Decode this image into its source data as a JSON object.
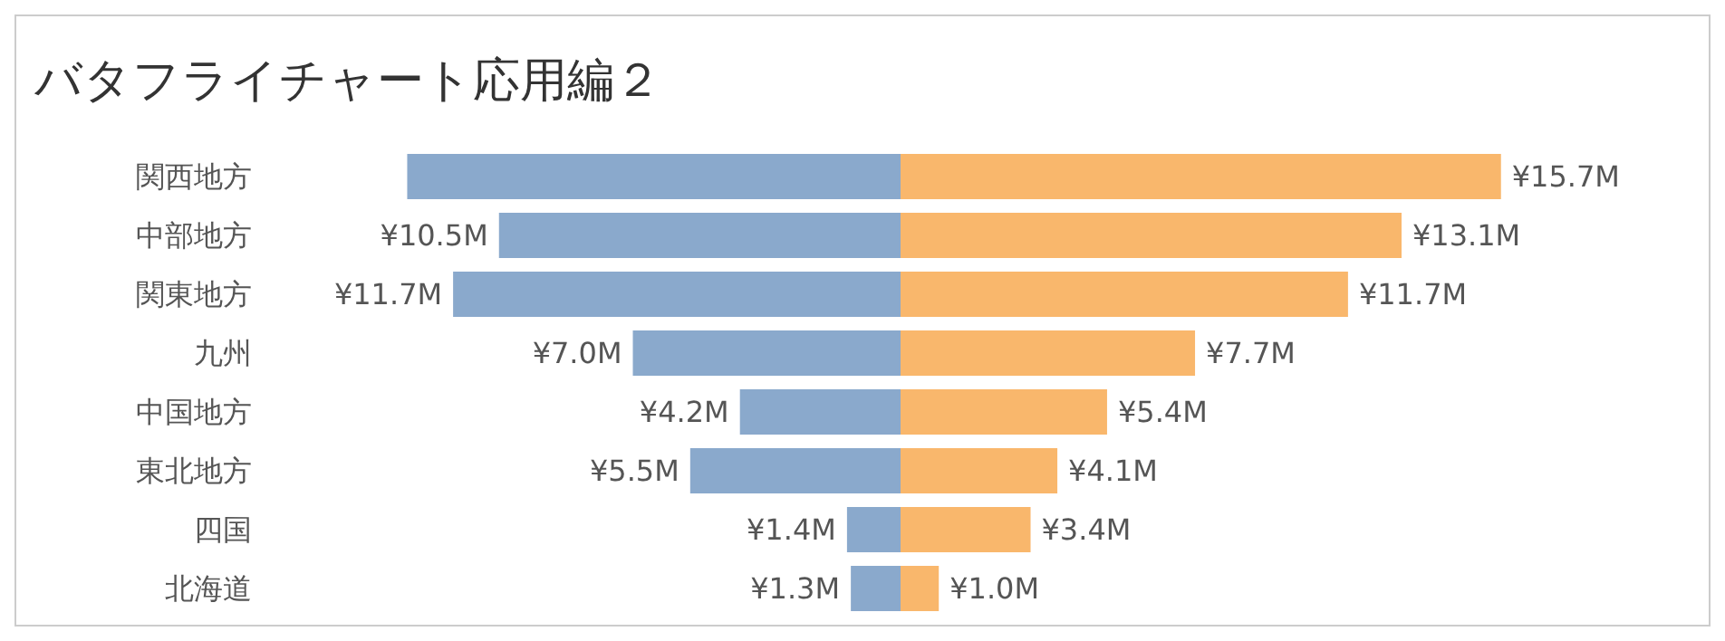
{
  "chart_data": [
    {
      "type": "bar",
      "title": "バタフライチャート応用編２",
      "orientation": "horizontal",
      "categories": [
        "関西地方",
        "中部地方",
        "関東地方",
        "九州",
        "中国地方",
        "東北地方",
        "四国",
        "北海道"
      ],
      "tick_labels": "y",
      "series": [
        {
          "color": "#8aa9cc",
          "values": [
            12.9,
            10.5,
            11.7,
            7.0,
            4.2,
            5.5,
            1.4,
            1.3
          ],
          "value_labels": [
            null,
            "¥10.5M",
            "¥11.7M",
            "¥7.0M",
            "¥4.2M",
            "¥5.5M",
            "¥1.4M",
            "¥1.3M"
          ]
        }
      ]
    },
    {
      "type": "bar",
      "orientation": "horizontal",
      "categories": [
        null,
        null,
        null,
        null,
        null,
        null,
        null,
        null
      ],
      "tick_labels": false,
      "series": [
        {
          "color": "#f9b76c",
          "values": [
            15.7,
            13.1,
            11.7,
            7.7,
            5.4,
            4.1,
            3.4,
            1.0
          ],
          "value_labels": [
            "¥15.7M",
            "¥13.1M",
            "¥11.7M",
            "¥7.7M",
            "¥5.4M",
            "¥4.1M",
            "¥3.4M",
            "¥1.0M"
          ]
        }
      ]
    }
  ]
}
